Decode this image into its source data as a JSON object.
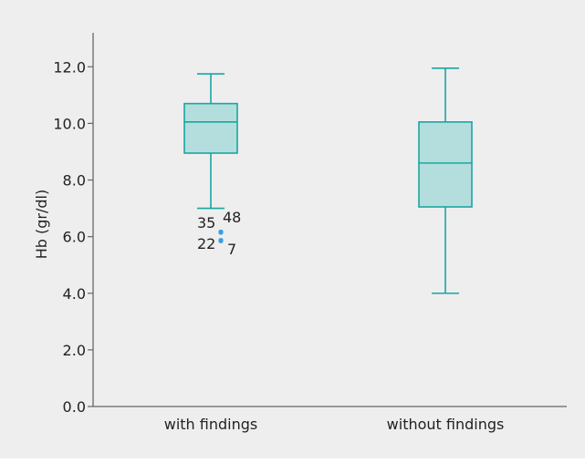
{
  "chart_data": {
    "type": "box",
    "ylabel": "Hb (gr/dl)",
    "xlabel": "",
    "ylim": [
      0,
      13.2
    ],
    "yticks": [
      0,
      2,
      4,
      6,
      8,
      10,
      12
    ],
    "ytick_labels": [
      "0.0",
      "2.0",
      "4.0",
      "6.0",
      "8.0",
      "10.0",
      "12.0"
    ],
    "categories": [
      "with findings",
      "without findings"
    ],
    "boxes": [
      {
        "category": "with findings",
        "whisker_low": 7.0,
        "q1": 8.95,
        "median": 10.05,
        "q3": 10.7,
        "whisker_high": 11.75,
        "outliers": [
          {
            "label": "35",
            "value": 6.15
          },
          {
            "label": "48",
            "value": 6.2
          },
          {
            "label": "22",
            "value": 5.9
          },
          {
            "label": "7",
            "value": 5.85
          }
        ]
      },
      {
        "category": "without findings",
        "whisker_low": 4.0,
        "q1": 7.05,
        "median": 8.6,
        "q3": 10.05,
        "whisker_high": 11.95,
        "outliers": []
      }
    ],
    "colors": {
      "box_fill": "#b4dedd",
      "box_stroke": "#1aa6a0",
      "outlier": "#3a9ee0",
      "axis": "#666666",
      "background": "#eeeeef"
    }
  }
}
